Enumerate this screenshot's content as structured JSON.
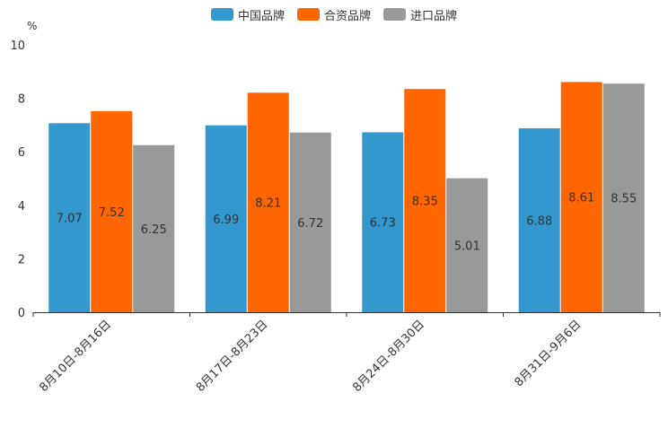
{
  "chart_data": {
    "type": "bar",
    "y_unit": "%",
    "ylim": [
      0,
      10
    ],
    "y_ticks": [
      0,
      2,
      4,
      6,
      8,
      10
    ],
    "categories": [
      "8月10日-8月16日",
      "8月17日-8月23日",
      "8月24日-8月30日",
      "8月31日-9月6日"
    ],
    "series": [
      {
        "name": "中国品牌",
        "color": "#3398CE",
        "values": [
          7.07,
          6.99,
          6.73,
          6.88
        ]
      },
      {
        "name": "合资品牌",
        "color": "#FF6600",
        "values": [
          7.52,
          8.21,
          8.35,
          8.61
        ]
      },
      {
        "name": "进口品牌",
        "color": "#999999",
        "values": [
          6.25,
          6.72,
          5.01,
          8.55
        ]
      }
    ],
    "legend_position": "top-center",
    "data_labels": "inside-middle"
  }
}
